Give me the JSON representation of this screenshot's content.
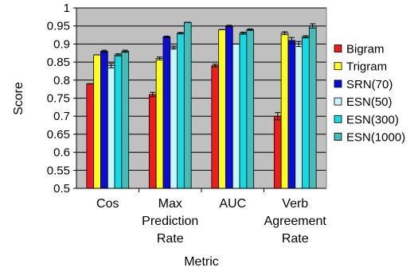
{
  "chart_data": {
    "type": "bar",
    "xlabel": "Metric",
    "ylabel": "Score",
    "ylim": [
      0.5,
      1.0
    ],
    "yticks": [
      "0.5",
      "0.55",
      "0.6",
      "0.65",
      "0.7",
      "0.75",
      "0.8",
      "0.85",
      "0.9",
      "0.95",
      "1"
    ],
    "grid": true,
    "legend_position": "right",
    "categories": [
      [
        "Cos"
      ],
      [
        "Max",
        "Prediction",
        "Rate"
      ],
      [
        "AUC"
      ],
      [
        "Verb",
        "Agreement",
        "Rate"
      ]
    ],
    "series": [
      {
        "name": "Bigram",
        "color": "#ee1c1c",
        "values": [
          0.79,
          0.76,
          0.84,
          0.7
        ],
        "errors": [
          0.0,
          0.006,
          0.004,
          0.01
        ]
      },
      {
        "name": "Trigram",
        "color": "#ffff1a",
        "values": [
          0.87,
          0.86,
          0.94,
          0.93
        ],
        "errors": [
          0.0,
          0.004,
          0.0,
          0.004
        ]
      },
      {
        "name": "SRN(70)",
        "color": "#0c0cd8",
        "values": [
          0.88,
          0.92,
          0.95,
          0.91
        ],
        "errors": [
          0.003,
          0.002,
          0.002,
          0.008
        ]
      },
      {
        "name": "ESN(50)",
        "color": "#c5f6f8",
        "values": [
          0.84,
          0.89,
          0.9,
          0.9
        ],
        "errors": [
          0.006,
          0.004,
          0.0,
          0.007
        ]
      },
      {
        "name": "ESN(300)",
        "color": "#12dbe4",
        "values": [
          0.87,
          0.93,
          0.93,
          0.92
        ],
        "errors": [
          0.003,
          0.002,
          0.003,
          0.003
        ]
      },
      {
        "name": "ESN(1000)",
        "color": "#43bdb9",
        "values": [
          0.88,
          0.96,
          0.94,
          0.95
        ],
        "errors": [
          0.003,
          0.0,
          0.002,
          0.006
        ]
      }
    ]
  }
}
